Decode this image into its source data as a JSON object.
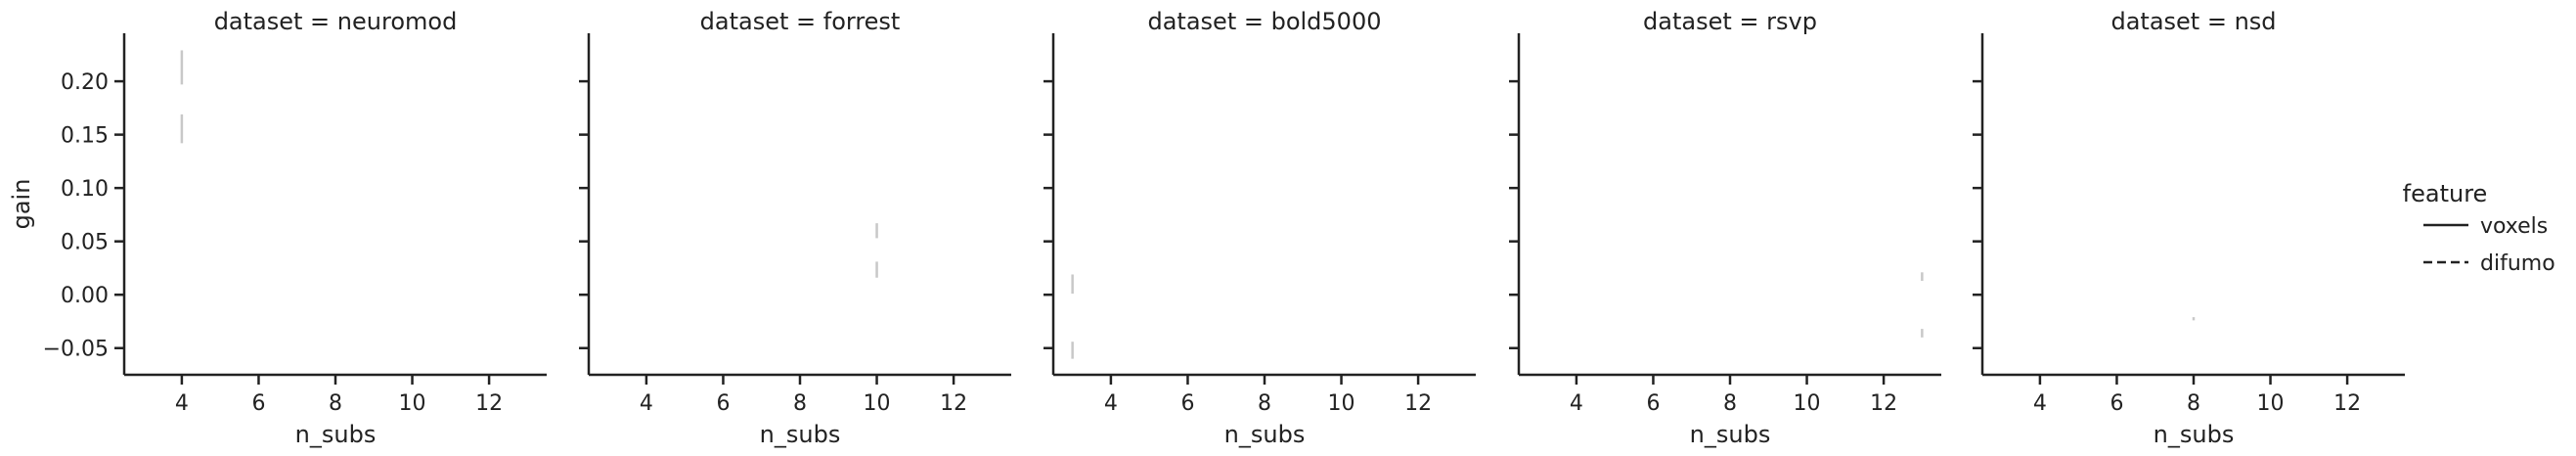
{
  "chart_data": {
    "type": "line",
    "layout": "facet-columns",
    "facet_variable": "dataset",
    "xlabel": "n_subs",
    "ylabel": "gain",
    "xlim": [
      2.5,
      13.5
    ],
    "ylim": [
      -0.075,
      0.245
    ],
    "xticks": [
      "4",
      "6",
      "8",
      "10",
      "12"
    ],
    "xtick_values": [
      4,
      6,
      8,
      10,
      12
    ],
    "yticks": [
      "−0.05",
      "0.00",
      "0.05",
      "0.10",
      "0.15",
      "0.20"
    ],
    "ytick_values": [
      -0.05,
      0.0,
      0.05,
      0.1,
      0.15,
      0.2
    ],
    "grid": false,
    "legend": {
      "title": "feature",
      "placement": "right",
      "entries": [
        {
          "label": "voxels",
          "style": "solid"
        },
        {
          "label": "difumo",
          "style": "dashed"
        }
      ]
    },
    "panels": [
      {
        "title": "dataset = neuromod",
        "intervals": [
          {
            "x": 4,
            "y_low": 0.197,
            "y_high": 0.229
          },
          {
            "x": 4,
            "y_low": 0.142,
            "y_high": 0.169
          }
        ]
      },
      {
        "title": "dataset = forrest",
        "intervals": [
          {
            "x": 10,
            "y_low": 0.053,
            "y_high": 0.067
          },
          {
            "x": 10,
            "y_low": 0.016,
            "y_high": 0.031
          }
        ]
      },
      {
        "title": "dataset = bold5000",
        "intervals": [
          {
            "x": 3,
            "y_low": 0.001,
            "y_high": 0.019
          },
          {
            "x": 3,
            "y_low": -0.06,
            "y_high": -0.044
          }
        ]
      },
      {
        "title": "dataset = rsvp",
        "intervals": [
          {
            "x": 13,
            "y_low": 0.013,
            "y_high": 0.021
          },
          {
            "x": 13,
            "y_low": -0.04,
            "y_high": -0.032
          }
        ]
      },
      {
        "title": "dataset = nsd",
        "intervals": [
          {
            "x": 8,
            "y_low": -0.024,
            "y_high": -0.021
          }
        ]
      }
    ],
    "colors": {
      "axis": "#222222",
      "interval": "#c8c8c8",
      "text": "#222222"
    }
  }
}
